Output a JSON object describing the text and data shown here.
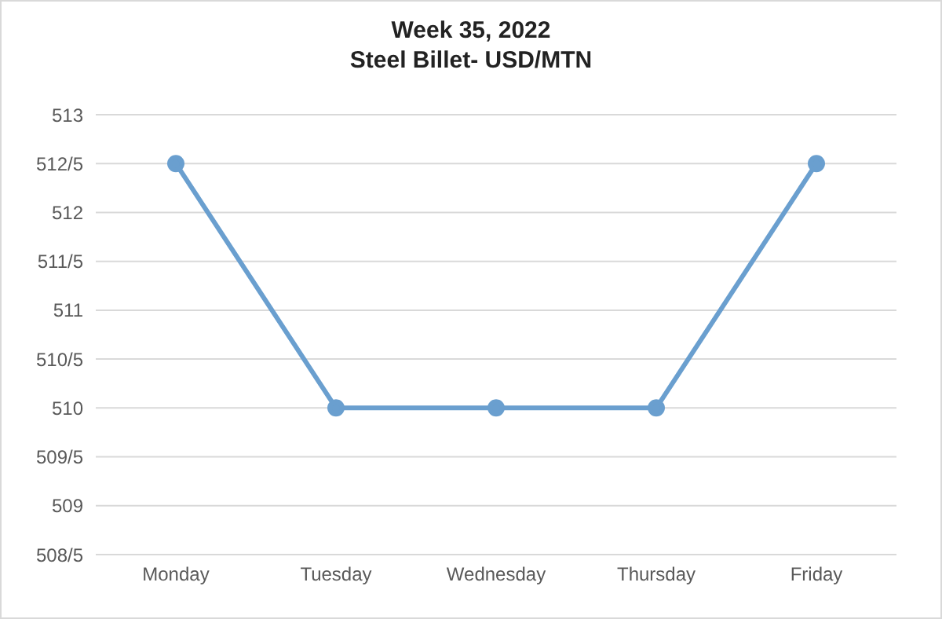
{
  "chart_data": {
    "type": "line",
    "title": "Week 35, 2022",
    "subtitle": "Steel Billet- USD/MTN",
    "categories": [
      "Monday",
      "Tuesday",
      "Wednesday",
      "Thursday",
      "Friday"
    ],
    "series": [
      {
        "color": "#6a9fcf",
        "values": [
          512.5,
          510,
          510,
          510,
          512.5
        ]
      }
    ],
    "ylim": [
      508.5,
      513
    ],
    "yticks": [
      {
        "value": 508.5,
        "label": "508/5"
      },
      509,
      {
        "value": 509.5,
        "label": "509/5"
      },
      510,
      {
        "value": 510.5,
        "label": "510/5"
      },
      511,
      {
        "value": 511.5,
        "label": "511/5"
      },
      512,
      {
        "value": 512.5,
        "label": "512/5"
      },
      513
    ],
    "grid": "y",
    "marker": "circle",
    "line_style": "solid"
  }
}
